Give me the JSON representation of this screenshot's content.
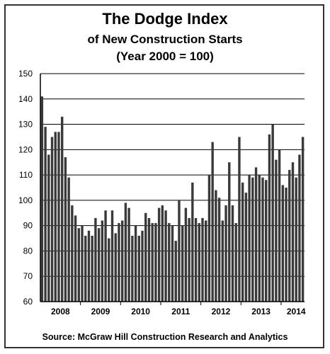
{
  "chart_data": {
    "type": "bar",
    "title": "The Dodge Index",
    "subtitle": [
      "of New Construction Starts",
      "(Year 2000 = 100)"
    ],
    "xlabel": "",
    "ylabel": "",
    "ylim": [
      60,
      150
    ],
    "yticks": [
      60,
      70,
      80,
      90,
      100,
      110,
      120,
      130,
      140,
      150
    ],
    "year_labels": [
      "2008",
      "2009",
      "2010",
      "2011",
      "2012",
      "2013",
      "2014"
    ],
    "months_per_year": 12,
    "grid": true,
    "bar_color": "#3a3a3a",
    "values": [
      141,
      129,
      118,
      125,
      127,
      127,
      133,
      117,
      109,
      98,
      94,
      89,
      90,
      86,
      88,
      86,
      93,
      89,
      92,
      96,
      85,
      96,
      87,
      91,
      92,
      99,
      97,
      86,
      90,
      86,
      88,
      95,
      93,
      91,
      91,
      97,
      98,
      96,
      91,
      90,
      84,
      100,
      90,
      97,
      93,
      107,
      93,
      91,
      93,
      92,
      110,
      123,
      104,
      101,
      92,
      98,
      115,
      98,
      91,
      125,
      107,
      103,
      110,
      109,
      113,
      110,
      109,
      108,
      126,
      130,
      116,
      120,
      106,
      105,
      112,
      115,
      109,
      118,
      125
    ]
  },
  "source": "Source:  McGraw Hill Construction Research and Analytics"
}
